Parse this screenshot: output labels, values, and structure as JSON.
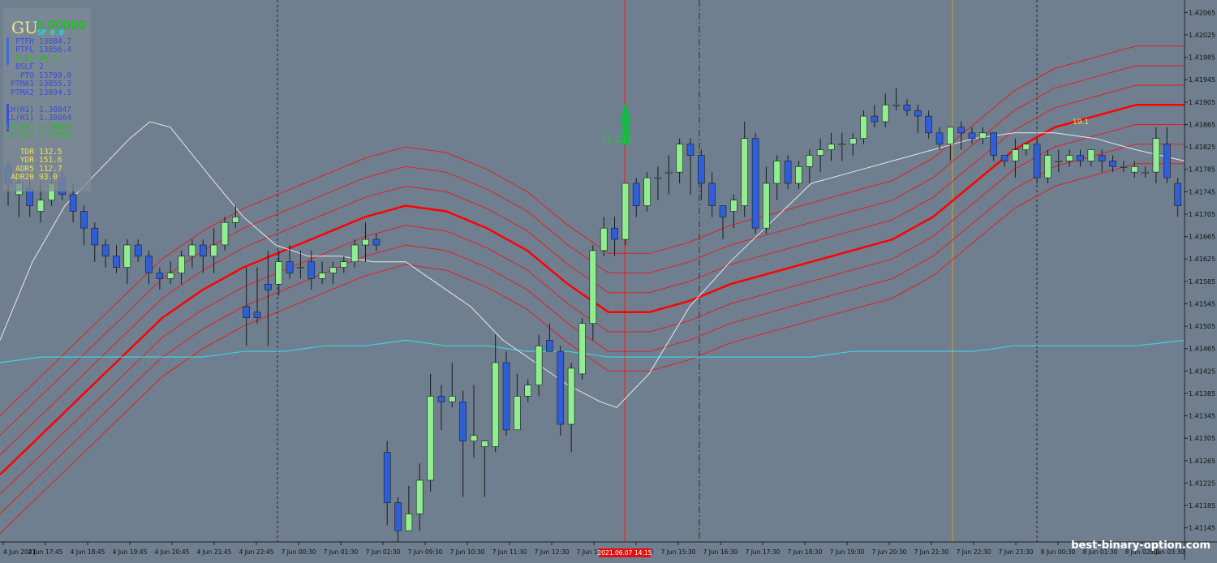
{
  "symbol": "GU",
  "price_display": "0.00000",
  "spread_label": "SP",
  "spread_value": "0.0",
  "info_rows": [
    {
      "label": "PTFH",
      "value": "13884.7",
      "color": "#3b4fd8"
    },
    {
      "label": "PTFL",
      "value": "13856.4",
      "color": "#3b4fd8"
    },
    {
      "label": "PLBS",
      "value": "28.3",
      "color": "#22c022"
    },
    {
      "label": "BSLF",
      "value": "2",
      "color": "#3b4fd8"
    },
    {
      "label": "PTO",
      "value": "13799.0",
      "color": "#3b4fd8"
    },
    {
      "label": "PTMA1",
      "value": "13855.3",
      "color": "#3b4fd8"
    },
    {
      "label": "PTMA2",
      "value": "13894.5",
      "color": "#3b4fd8"
    },
    {
      "label": "LH(H1)",
      "value": "1.38847",
      "color": "#3b4fd8"
    },
    {
      "label": "LL(H1)",
      "value": "1.38664",
      "color": "#3b4fd8"
    },
    {
      "label": "LH(H4)",
      "value": "1.38424",
      "color": "#22c022"
    },
    {
      "label": "LL(H4)",
      "value": "1.37886",
      "color": "#22c022"
    },
    {
      "label": "TDR",
      "value": "132.5",
      "color": "#f0e050"
    },
    {
      "label": "YDR",
      "value": "151.6",
      "color": "#f0e050"
    },
    {
      "label": "ADR5",
      "value": "112.7",
      "color": "#f0e050"
    },
    {
      "label": "ADR20",
      "value": "93.0",
      "color": "#f0e050"
    }
  ],
  "signal_label": "(1.01)",
  "annotation_label": "19.1",
  "watermark": "best-binary-option.com",
  "colors": {
    "background": "#6f7f90",
    "bull": "#90ee90",
    "bear": "#2e5fd8",
    "ma_main": "#ff0000",
    "envelope": "#e02020",
    "ma_fast": "#e8e8e8",
    "ma_slow": "#40d0e0"
  },
  "chart_data": {
    "type": "candlestick",
    "symbol": "GBPUSD",
    "timeframe": "M15",
    "ylim": [
      1.4112,
      1.4208
    ],
    "y_ticks": [
      "1.42065",
      "1.42025",
      "1.41985",
      "1.41945",
      "1.41905",
      "1.41865",
      "1.41825",
      "1.41785",
      "1.41745",
      "1.41705",
      "1.41665",
      "1.41625",
      "1.41585",
      "1.41545",
      "1.41505",
      "1.41465",
      "1.41425",
      "1.41385",
      "1.41345",
      "1.41305",
      "1.41265",
      "1.41225",
      "1.41185",
      "1.41145"
    ],
    "x_ticks": [
      "4 Jun 2021",
      "4 Jun 17:45",
      "4 Jun 18:45",
      "4 Jun 19:45",
      "4 Jun 20:45",
      "4 Jun 21:45",
      "4 Jun 22:45",
      "7 Jun 00:30",
      "7 Jun 01:30",
      "7 Jun 02:30",
      "7 Jun 09:30",
      "7 Jun 10:30",
      "7 Jun 11:30",
      "7 Jun 12:30",
      "7 Jun 13:30",
      "7 Jun 14:30",
      "7 Jun 15:30",
      "7 Jun 16:30",
      "7 Jun 17:30",
      "7 Jun 18:30",
      "7 Jun 19:30",
      "7 Jun 20:30",
      "7 Jun 21:30",
      "7 Jun 22:30",
      "7 Jun 23:30",
      "8 Jun 00:30",
      "8 Jun 01:30",
      "8 Jun 02:30",
      "8 Jun 03:30"
    ],
    "highlight_time_label": "2021.06.07 14:15",
    "candles": [
      [
        1.4179,
        1.4176,
        1.418,
        1.4172
      ],
      [
        1.4174,
        1.4176,
        1.4178,
        1.417
      ],
      [
        1.4175,
        1.4172,
        1.4177,
        1.417
      ],
      [
        1.4171,
        1.4173,
        1.4179,
        1.4169
      ],
      [
        1.4173,
        1.4176,
        1.4179,
        1.4172
      ],
      [
        1.4177,
        1.4174,
        1.4178,
        1.4173
      ],
      [
        1.4174,
        1.4171,
        1.4176,
        1.4169
      ],
      [
        1.4171,
        1.4168,
        1.4172,
        1.4165
      ],
      [
        1.4168,
        1.4165,
        1.4169,
        1.4162
      ],
      [
        1.4165,
        1.4163,
        1.4166,
        1.4161
      ],
      [
        1.4163,
        1.4161,
        1.4165,
        1.416
      ],
      [
        1.4161,
        1.4165,
        1.4166,
        1.4158
      ],
      [
        1.4165,
        1.4163,
        1.4166,
        1.4162
      ],
      [
        1.4163,
        1.416,
        1.4164,
        1.4158
      ],
      [
        1.416,
        1.4159,
        1.4161,
        1.4157
      ],
      [
        1.4159,
        1.416,
        1.4162,
        1.4158
      ],
      [
        1.416,
        1.4163,
        1.4164,
        1.4158
      ],
      [
        1.4163,
        1.4165,
        1.4166,
        1.4161
      ],
      [
        1.4165,
        1.4163,
        1.4166,
        1.416
      ],
      [
        1.4163,
        1.4165,
        1.4168,
        1.416
      ],
      [
        1.4165,
        1.4169,
        1.417,
        1.4164
      ],
      [
        1.4169,
        1.417,
        1.4172,
        1.4168
      ],
      [
        1.4154,
        1.4152,
        1.4161,
        1.4147
      ],
      [
        1.4153,
        1.4152,
        1.4161,
        1.4151
      ],
      [
        1.4158,
        1.4157,
        1.4164,
        1.4147
      ],
      [
        1.4158,
        1.4162,
        1.4164,
        1.4156
      ],
      [
        1.4162,
        1.416,
        1.4165,
        1.4159
      ],
      [
        1.4161,
        1.4161,
        1.4164,
        1.4159
      ],
      [
        1.4162,
        1.4159,
        1.4164,
        1.4157
      ],
      [
        1.4159,
        1.416,
        1.4162,
        1.4158
      ],
      [
        1.416,
        1.4161,
        1.4162,
        1.4158
      ],
      [
        1.4161,
        1.4162,
        1.4163,
        1.416
      ],
      [
        1.4162,
        1.4165,
        1.4166,
        1.4161
      ],
      [
        1.4165,
        1.4166,
        1.4169,
        1.4162
      ],
      [
        1.4166,
        1.4165,
        1.4167,
        1.4164
      ],
      [
        1.4128,
        1.4119,
        1.413,
        1.4115
      ],
      [
        1.4119,
        1.4114,
        1.412,
        1.4112
      ],
      [
        1.4114,
        1.4117,
        1.4122,
        1.4114
      ],
      [
        1.4117,
        1.4123,
        1.4126,
        1.4114
      ],
      [
        1.4123,
        1.4138,
        1.4142,
        1.4121
      ],
      [
        1.4138,
        1.4137,
        1.414,
        1.4132
      ],
      [
        1.4137,
        1.4138,
        1.4144,
        1.4136
      ],
      [
        1.4137,
        1.413,
        1.4139,
        1.412
      ],
      [
        1.413,
        1.4131,
        1.414,
        1.4127
      ],
      [
        1.4129,
        1.413,
        1.413,
        1.412
      ],
      [
        1.4129,
        1.4144,
        1.4149,
        1.4128
      ],
      [
        1.4144,
        1.4132,
        1.4146,
        1.4131
      ],
      [
        1.4132,
        1.4138,
        1.4142,
        1.4132
      ],
      [
        1.4138,
        1.414,
        1.4141,
        1.4137
      ],
      [
        1.414,
        1.4147,
        1.4149,
        1.4138
      ],
      [
        1.4148,
        1.4146,
        1.4151,
        1.4146
      ],
      [
        1.4146,
        1.4133,
        1.4147,
        1.4131
      ],
      [
        1.4133,
        1.4143,
        1.4144,
        1.4128
      ],
      [
        1.4142,
        1.4151,
        1.4152,
        1.4141
      ],
      [
        1.4151,
        1.4164,
        1.4165,
        1.4148
      ],
      [
        1.4164,
        1.4168,
        1.417,
        1.4163
      ],
      [
        1.4168,
        1.4166,
        1.417,
        1.4163
      ],
      [
        1.4166,
        1.4176,
        1.4176,
        1.4165
      ],
      [
        1.4176,
        1.4172,
        1.4177,
        1.417
      ],
      [
        1.4172,
        1.4177,
        1.4178,
        1.4171
      ],
      [
        1.4177,
        1.4177,
        1.4179,
        1.4173
      ],
      [
        1.4178,
        1.4178,
        1.4181,
        1.4174
      ],
      [
        1.4178,
        1.4183,
        1.4184,
        1.4176
      ],
      [
        1.4183,
        1.4181,
        1.4184,
        1.4174
      ],
      [
        1.4181,
        1.4176,
        1.4182,
        1.4173
      ],
      [
        1.4176,
        1.4172,
        1.4178,
        1.417
      ],
      [
        1.4172,
        1.417,
        1.4172,
        1.4166
      ],
      [
        1.4171,
        1.4173,
        1.4174,
        1.4168
      ],
      [
        1.4172,
        1.4184,
        1.4187,
        1.417
      ],
      [
        1.4184,
        1.4168,
        1.4185,
        1.4167
      ],
      [
        1.4168,
        1.4176,
        1.4179,
        1.4167
      ],
      [
        1.4176,
        1.418,
        1.4181,
        1.4173
      ],
      [
        1.418,
        1.4176,
        1.4181,
        1.4175
      ],
      [
        1.4176,
        1.4179,
        1.418,
        1.4175
      ],
      [
        1.4179,
        1.4181,
        1.4182,
        1.4176
      ],
      [
        1.4181,
        1.4182,
        1.4184,
        1.4178
      ],
      [
        1.4182,
        1.4183,
        1.4185,
        1.418
      ],
      [
        1.4183,
        1.4183,
        1.4185,
        1.418
      ],
      [
        1.4183,
        1.4184,
        1.4185,
        1.4181
      ],
      [
        1.4184,
        1.4188,
        1.4189,
        1.4183
      ],
      [
        1.4188,
        1.4187,
        1.419,
        1.4186
      ],
      [
        1.4187,
        1.419,
        1.4192,
        1.4186
      ],
      [
        1.419,
        1.419,
        1.4193,
        1.4189
      ],
      [
        1.419,
        1.4189,
        1.4191,
        1.4188
      ],
      [
        1.4189,
        1.4188,
        1.419,
        1.4185
      ],
      [
        1.4188,
        1.4185,
        1.4189,
        1.4184
      ],
      [
        1.4185,
        1.4183,
        1.4186,
        1.4182
      ],
      [
        1.4183,
        1.4186,
        1.4186,
        1.418
      ],
      [
        1.4186,
        1.4185,
        1.4187,
        1.4182
      ],
      [
        1.4185,
        1.4184,
        1.4186,
        1.4183
      ],
      [
        1.4184,
        1.4185,
        1.4186,
        1.4183
      ],
      [
        1.4185,
        1.4181,
        1.4185,
        1.418
      ],
      [
        1.4181,
        1.418,
        1.4181,
        1.4179
      ],
      [
        1.418,
        1.4182,
        1.4184,
        1.4177
      ],
      [
        1.4182,
        1.4183,
        1.4183,
        1.4181
      ],
      [
        1.4183,
        1.4177,
        1.4184,
        1.4176
      ],
      [
        1.4177,
        1.4181,
        1.4182,
        1.4176
      ],
      [
        1.418,
        1.418,
        1.4182,
        1.4178
      ],
      [
        1.418,
        1.4181,
        1.4182,
        1.4179
      ],
      [
        1.4181,
        1.418,
        1.4182,
        1.4179
      ],
      [
        1.418,
        1.4182,
        1.4182,
        1.4179
      ],
      [
        1.4181,
        1.418,
        1.4182,
        1.4178
      ],
      [
        1.418,
        1.4179,
        1.4181,
        1.4178
      ],
      [
        1.4179,
        1.4179,
        1.418,
        1.4178
      ],
      [
        1.4178,
        1.4179,
        1.418,
        1.4177
      ],
      [
        1.4178,
        1.4178,
        1.4179,
        1.4177
      ],
      [
        1.4178,
        1.4184,
        1.4186,
        1.4176
      ],
      [
        1.4183,
        1.4177,
        1.4186,
        1.4176
      ],
      [
        1.4176,
        1.4172,
        1.4177,
        1.417
      ]
    ]
  }
}
